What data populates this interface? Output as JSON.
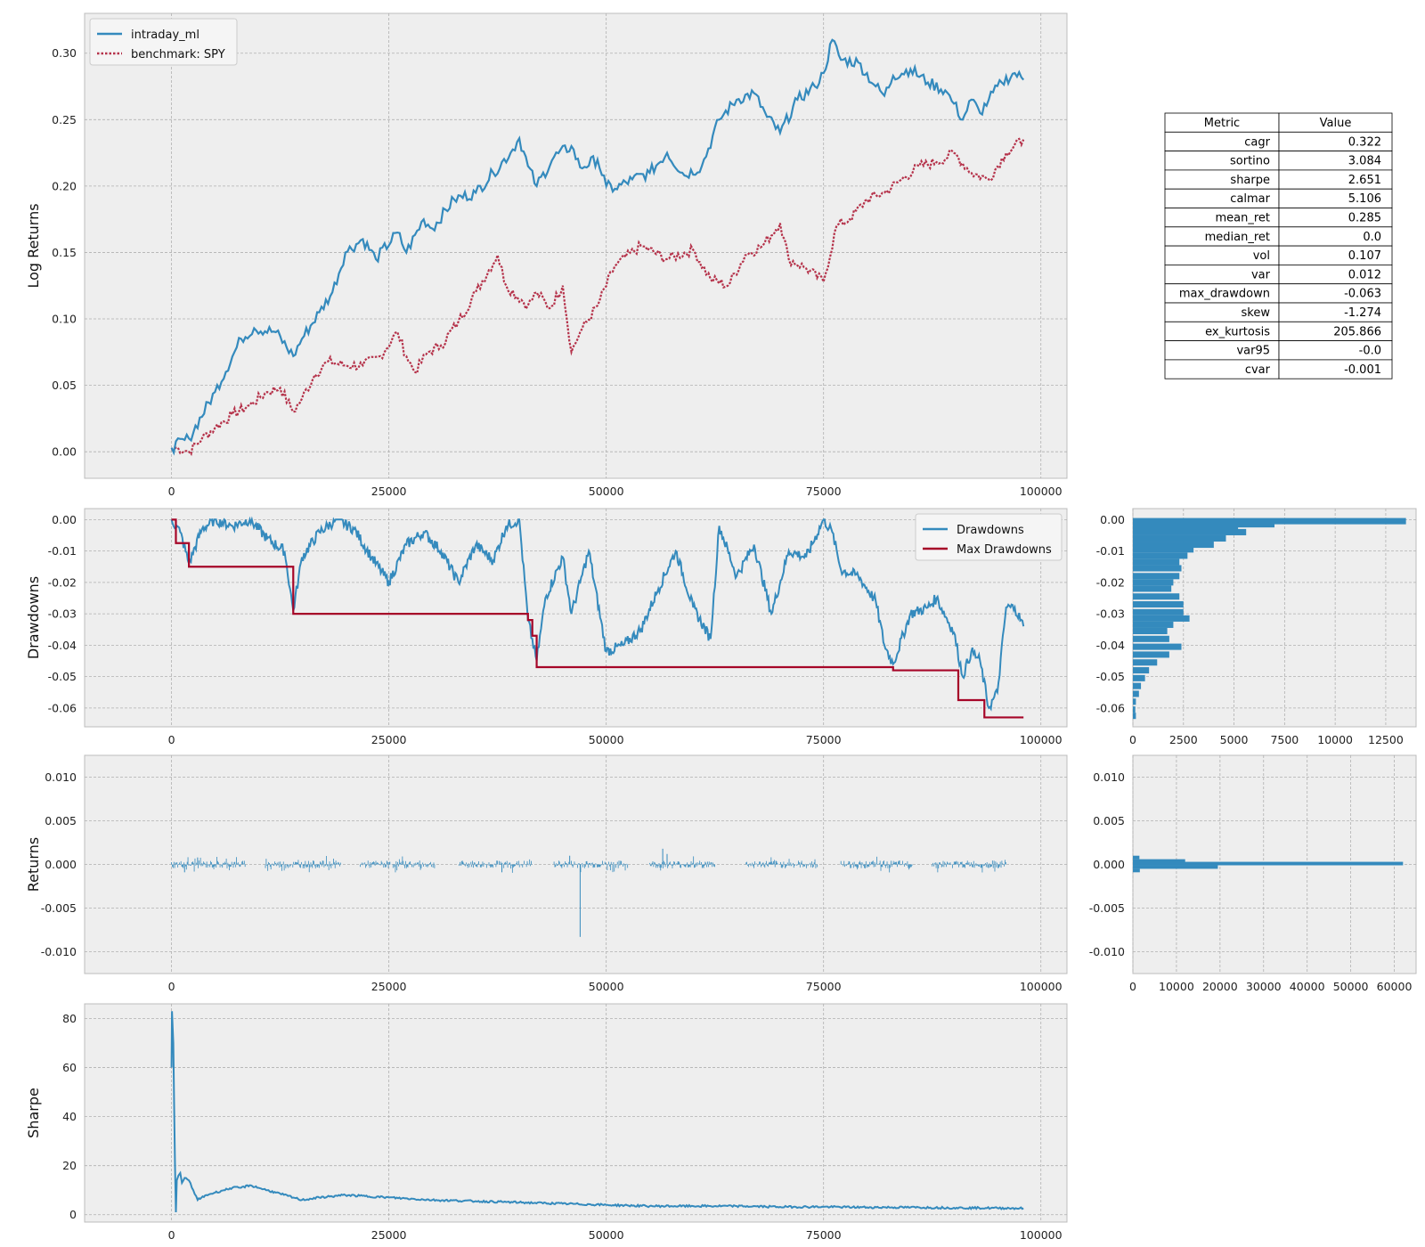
{
  "colors": {
    "blue": "#348ABD",
    "red": "#A60628",
    "bench": "#B5324A",
    "panel": "#EEEEEE",
    "frame": "#BCBCBC"
  },
  "chart_data": [
    {
      "id": "log_returns",
      "type": "line",
      "xlabel": "",
      "ylabel": "Log Returns",
      "xlim": [
        -10000,
        103000
      ],
      "ylim": [
        -0.02,
        0.33
      ],
      "xticks": [
        0,
        25000,
        50000,
        75000,
        100000
      ],
      "xticklabels": [
        "0",
        "25000",
        "50000",
        "75000",
        "100000"
      ],
      "yticks": [
        0,
        0.05,
        0.1,
        0.15,
        0.2,
        0.25,
        0.3
      ],
      "yticklabels": [
        "0.00",
        "0.05",
        "0.10",
        "0.15",
        "0.20",
        "0.25",
        "0.30"
      ],
      "legend": "top-left",
      "grid": true,
      "series": [
        {
          "name": "intraday_ml",
          "style": "solid",
          "color": "#348ABD",
          "x": [
            0,
            2000,
            5000,
            8000,
            9500,
            12000,
            14000,
            15000,
            17000,
            18500,
            20000,
            22000,
            23500,
            26000,
            27000,
            29000,
            30000,
            32500,
            35000,
            37000,
            39000,
            40000,
            41000,
            42000,
            44000,
            46000,
            47000,
            49000,
            50000,
            51000,
            53000,
            55000,
            57000,
            59000,
            61000,
            63000,
            65000,
            67000,
            68500,
            70000,
            72000,
            74000,
            75000,
            76000,
            77000,
            79000,
            81000,
            82000,
            83000,
            85000,
            87000,
            89000,
            90000,
            91000,
            92000,
            93000,
            94000,
            95500,
            97000,
            98000
          ],
          "y": [
            0.003,
            0.01,
            0.045,
            0.085,
            0.093,
            0.09,
            0.072,
            0.085,
            0.105,
            0.12,
            0.15,
            0.16,
            0.145,
            0.165,
            0.15,
            0.175,
            0.168,
            0.19,
            0.195,
            0.21,
            0.225,
            0.236,
            0.215,
            0.2,
            0.222,
            0.23,
            0.214,
            0.22,
            0.2,
            0.198,
            0.205,
            0.21,
            0.225,
            0.208,
            0.215,
            0.25,
            0.265,
            0.27,
            0.252,
            0.24,
            0.265,
            0.275,
            0.285,
            0.31,
            0.295,
            0.293,
            0.275,
            0.268,
            0.283,
            0.288,
            0.278,
            0.272,
            0.262,
            0.25,
            0.265,
            0.255,
            0.265,
            0.278,
            0.285,
            0.28
          ]
        },
        {
          "name": "benchmark: SPY",
          "style": "dotted",
          "color": "#B5324A",
          "x": [
            0,
            500,
            2000,
            3500,
            5000,
            7000,
            9000,
            11000,
            12500,
            14000,
            15000,
            16500,
            18000,
            20000,
            22000,
            24000,
            26000,
            27000,
            28000,
            29500,
            31000,
            33000,
            35000,
            37500,
            38500,
            41000,
            42000,
            43500,
            45000,
            46000,
            47000,
            49000,
            51000,
            54000,
            57000,
            60000,
            62000,
            64000,
            66000,
            68000,
            70000,
            71000,
            73000,
            75000,
            76500,
            78000,
            80000,
            82000,
            84000,
            86000,
            88000,
            90000,
            92000,
            94000,
            96000,
            98000
          ],
          "y": [
            0.001,
            0.003,
            0.0,
            0.01,
            0.018,
            0.028,
            0.035,
            0.045,
            0.048,
            0.03,
            0.04,
            0.058,
            0.068,
            0.065,
            0.065,
            0.072,
            0.09,
            0.072,
            0.06,
            0.075,
            0.08,
            0.098,
            0.12,
            0.148,
            0.125,
            0.11,
            0.12,
            0.108,
            0.125,
            0.075,
            0.09,
            0.11,
            0.14,
            0.155,
            0.145,
            0.152,
            0.13,
            0.125,
            0.148,
            0.155,
            0.172,
            0.145,
            0.138,
            0.128,
            0.17,
            0.175,
            0.19,
            0.195,
            0.205,
            0.215,
            0.218,
            0.225,
            0.21,
            0.205,
            0.225,
            0.235
          ]
        }
      ]
    },
    {
      "id": "drawdowns",
      "type": "line",
      "ylabel": "Drawdowns",
      "xlim": [
        -10000,
        103000
      ],
      "ylim": [
        -0.066,
        0.0035
      ],
      "xticks": [
        0,
        25000,
        50000,
        75000,
        100000
      ],
      "xticklabels": [
        "0",
        "25000",
        "50000",
        "75000",
        "100000"
      ],
      "yticks": [
        0,
        -0.01,
        -0.02,
        -0.03,
        -0.04,
        -0.05,
        -0.06
      ],
      "yticklabels": [
        "0.00",
        "-0.01",
        "-0.02",
        "-0.03",
        "-0.04",
        "-0.05",
        "-0.06"
      ],
      "legend": "top-right",
      "grid": true,
      "series": [
        {
          "name": "Drawdowns",
          "color": "#348ABD",
          "x": [
            0,
            1000,
            2000,
            3500,
            5000,
            7000,
            9000,
            11000,
            13000,
            14000,
            15000,
            17000,
            19000,
            21000,
            23000,
            25000,
            27000,
            29000,
            31000,
            33000,
            35000,
            37000,
            38500,
            40000,
            41000,
            42000,
            43000,
            45000,
            46000,
            47000,
            48000,
            50000,
            52000,
            54000,
            56000,
            58000,
            60000,
            62000,
            63000,
            65000,
            67000,
            69000,
            71000,
            73000,
            75000,
            76000,
            77000,
            79000,
            81000,
            82000,
            83000,
            85000,
            87000,
            88000,
            90000,
            91000,
            92000,
            93000,
            94000,
            95000,
            96000,
            97000,
            98000
          ],
          "y": [
            0.0,
            -0.004,
            -0.014,
            -0.003,
            0.0,
            -0.002,
            0.0,
            -0.006,
            -0.01,
            -0.029,
            -0.012,
            -0.004,
            0.0,
            -0.003,
            -0.012,
            -0.02,
            -0.008,
            -0.004,
            -0.01,
            -0.02,
            -0.008,
            -0.013,
            -0.002,
            0.0,
            -0.032,
            -0.045,
            -0.025,
            -0.012,
            -0.03,
            -0.02,
            -0.01,
            -0.042,
            -0.04,
            -0.035,
            -0.022,
            -0.01,
            -0.028,
            -0.038,
            -0.002,
            -0.018,
            -0.008,
            -0.03,
            -0.01,
            -0.012,
            0.0,
            -0.004,
            -0.016,
            -0.018,
            -0.026,
            -0.04,
            -0.046,
            -0.03,
            -0.028,
            -0.025,
            -0.036,
            -0.05,
            -0.042,
            -0.045,
            -0.06,
            -0.055,
            -0.028,
            -0.028,
            -0.034
          ]
        },
        {
          "name": "Max Drawdowns",
          "color": "#A60628",
          "step": true,
          "x": [
            0,
            500,
            2000,
            14000,
            41000,
            41500,
            42000,
            83000,
            90500,
            93500,
            98000
          ],
          "y": [
            0.0,
            -0.0075,
            -0.015,
            -0.03,
            -0.032,
            -0.037,
            -0.047,
            -0.048,
            -0.0575,
            -0.063,
            -0.063
          ]
        }
      ]
    },
    {
      "id": "returns",
      "type": "bar",
      "ylabel": "Returns",
      "xlim": [
        -10000,
        103000
      ],
      "ylim": [
        -0.0125,
        0.0125
      ],
      "xticks": [
        0,
        25000,
        50000,
        75000,
        100000
      ],
      "xticklabels": [
        "0",
        "25000",
        "50000",
        "75000",
        "100000"
      ],
      "yticks": [
        0.01,
        0.005,
        0,
        -0.005,
        -0.01
      ],
      "yticklabels": [
        "0.010",
        "0.005",
        "0.000",
        "-0.005",
        "-0.010"
      ],
      "grid": true,
      "segments": [
        [
          0,
          8500
        ],
        [
          10800,
          19500
        ],
        [
          21700,
          30500
        ],
        [
          33000,
          41500
        ],
        [
          44000,
          52500
        ],
        [
          55000,
          62500
        ],
        [
          66000,
          74300
        ],
        [
          77000,
          85200
        ],
        [
          87500,
          96000
        ]
      ],
      "spikes": {
        "x": [
          47000,
          56500,
          57000,
          1500,
          3000,
          38000,
          45800
        ],
        "y": [
          -0.0083,
          0.0018,
          0.0012,
          -0.0009,
          0.0008,
          -0.0009,
          0.001
        ]
      }
    },
    {
      "id": "sharpe",
      "type": "line",
      "ylabel": "Sharpe",
      "xlim": [
        -10000,
        103000
      ],
      "ylim": [
        -3,
        86
      ],
      "xticks": [
        0,
        25000,
        50000,
        75000,
        100000
      ],
      "xticklabels": [
        "0",
        "25000",
        "50000",
        "75000",
        "100000"
      ],
      "yticks": [
        0,
        20,
        40,
        60,
        80
      ],
      "yticklabels": [
        "0",
        "20",
        "40",
        "60",
        "80"
      ],
      "grid": true,
      "series": [
        {
          "name": "",
          "color": "#348ABD",
          "x": [
            0,
            50,
            200,
            300,
            400,
            500,
            600,
            800,
            1000,
            1200,
            1500,
            2000,
            2500,
            3000,
            4000,
            5000,
            6000,
            7000,
            8000,
            9000,
            10000,
            11000,
            12000,
            14000,
            15000,
            17000,
            20000,
            25000,
            30000,
            35000,
            40000,
            45000,
            50000,
            55000,
            60000,
            65000,
            70000,
            75000,
            80000,
            85000,
            90000,
            95000,
            98000
          ],
          "y": [
            60,
            83,
            70,
            45,
            20,
            1,
            14,
            16,
            17,
            13,
            15,
            14,
            10,
            6,
            8,
            9,
            10,
            11,
            11,
            12,
            11,
            10,
            9,
            7,
            6,
            7,
            8,
            7,
            6,
            5.5,
            5,
            4.5,
            4,
            3.5,
            3.5,
            3.5,
            3.2,
            3.2,
            3,
            3,
            2.8,
            2.7,
            2.6
          ]
        }
      ]
    },
    {
      "id": "drawdown_hist",
      "type": "bar",
      "orientation": "horizontal",
      "xlim": [
        0,
        14000
      ],
      "ylim": [
        -0.066,
        0.0035
      ],
      "xticks": [
        0,
        2500,
        5000,
        7500,
        10000,
        12500
      ],
      "xticklabels": [
        "0",
        "2500",
        "5000",
        "7500",
        "10000",
        "12500"
      ],
      "yticks": [
        0,
        -0.01,
        -0.02,
        -0.03,
        -0.04,
        -0.05,
        -0.06
      ],
      "yticklabels": [
        "0.00",
        "-0.01",
        "-0.02",
        "-0.03",
        "-0.04",
        "-0.05",
        "-0.06"
      ],
      "grid": true,
      "bin_centers": [
        -0.0005,
        -0.0015,
        -0.0025,
        -0.004,
        -0.006,
        -0.008,
        -0.0095,
        -0.0115,
        -0.0135,
        -0.0155,
        -0.018,
        -0.02,
        -0.022,
        -0.0245,
        -0.027,
        -0.0295,
        -0.0315,
        -0.0335,
        -0.0355,
        -0.038,
        -0.0405,
        -0.043,
        -0.0455,
        -0.048,
        -0.0505,
        -0.053,
        -0.0555,
        -0.058,
        -0.0605,
        -0.0625
      ],
      "bin_height": 0.002,
      "values": [
        13500,
        7000,
        5200,
        5600,
        4600,
        4000,
        3000,
        2700,
        2300,
        2400,
        2300,
        2000,
        1900,
        2300,
        2500,
        2500,
        2800,
        2000,
        1700,
        1800,
        2400,
        1800,
        1200,
        800,
        600,
        400,
        300,
        150,
        120,
        150
      ]
    },
    {
      "id": "returns_hist",
      "type": "bar",
      "orientation": "horizontal",
      "xlim": [
        0,
        65000
      ],
      "ylim": [
        -0.0125,
        0.0125
      ],
      "xticks": [
        0,
        10000,
        20000,
        30000,
        40000,
        50000,
        60000
      ],
      "xticklabels": [
        "0",
        "10000",
        "20000",
        "30000",
        "40000",
        "50000",
        "60000"
      ],
      "yticks": [
        0.01,
        0.005,
        0,
        -0.005,
        -0.01
      ],
      "yticklabels": [
        "0.010",
        "0.005",
        "0.000",
        "-0.005",
        "-0.010"
      ],
      "grid": true,
      "bin_centers": [
        0.0008,
        0.0004,
        0.0001,
        -0.0003,
        -0.0007
      ],
      "bin_height": 0.0004,
      "values": [
        1500,
        12000,
        62000,
        19500,
        1600
      ]
    }
  ],
  "table": {
    "header": [
      "Metric",
      "Value"
    ],
    "rows": [
      [
        "cagr",
        "0.322"
      ],
      [
        "sortino",
        "3.084"
      ],
      [
        "sharpe",
        "2.651"
      ],
      [
        "calmar",
        "5.106"
      ],
      [
        "mean_ret",
        "0.285"
      ],
      [
        "median_ret",
        "0.0"
      ],
      [
        "vol",
        "0.107"
      ],
      [
        "var",
        "0.012"
      ],
      [
        "max_drawdown",
        "-0.063"
      ],
      [
        "skew",
        "-1.274"
      ],
      [
        "ex_kurtosis",
        "205.866"
      ],
      [
        "var95",
        "-0.0"
      ],
      [
        "cvar",
        "-0.001"
      ]
    ]
  }
}
